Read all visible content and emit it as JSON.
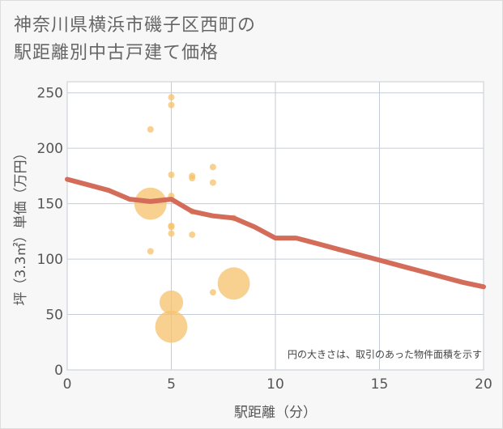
{
  "title_line1": "神奈川県横浜市磯子区西町の",
  "title_line2": "駅距離別中古戸建て価格",
  "chart_data": {
    "type": "scatter",
    "xlabel": "駅距離（分）",
    "ylabel": "坪（3.3㎡）単価（万円）",
    "xlim": [
      0,
      20
    ],
    "ylim": [
      0,
      260
    ],
    "x_ticks": [
      0,
      5,
      10,
      15,
      20
    ],
    "y_ticks": [
      0,
      50,
      100,
      150,
      200,
      250
    ],
    "x_tick_labels": [
      "0",
      "5",
      "10",
      "15",
      "20"
    ],
    "y_tick_labels": [
      "0",
      "50",
      "100",
      "150",
      "200",
      "250"
    ],
    "grid": true,
    "note": "円の大きさは、取引のあった物件面積を示す",
    "scatter_color": "#f5c26b",
    "line_color": "#d46c5a",
    "points": [
      {
        "x": 4,
        "y": 217,
        "size": 1
      },
      {
        "x": 4,
        "y": 150,
        "size": 4
      },
      {
        "x": 4,
        "y": 107,
        "size": 1
      },
      {
        "x": 5,
        "y": 246,
        "size": 1
      },
      {
        "x": 5,
        "y": 239,
        "size": 1
      },
      {
        "x": 5,
        "y": 176,
        "size": 1
      },
      {
        "x": 5,
        "y": 157,
        "size": 1
      },
      {
        "x": 5,
        "y": 130,
        "size": 1
      },
      {
        "x": 5,
        "y": 129,
        "size": 1
      },
      {
        "x": 5,
        "y": 123,
        "size": 1
      },
      {
        "x": 5,
        "y": 61,
        "size": 3
      },
      {
        "x": 5,
        "y": 39,
        "size": 4
      },
      {
        "x": 6,
        "y": 175,
        "size": 1
      },
      {
        "x": 6,
        "y": 173,
        "size": 1
      },
      {
        "x": 6,
        "y": 143,
        "size": 1
      },
      {
        "x": 6,
        "y": 122,
        "size": 1
      },
      {
        "x": 7,
        "y": 183,
        "size": 1
      },
      {
        "x": 7,
        "y": 169,
        "size": 1
      },
      {
        "x": 7,
        "y": 70,
        "size": 1
      },
      {
        "x": 8,
        "y": 137,
        "size": 1
      },
      {
        "x": 8,
        "y": 78,
        "size": 4
      }
    ],
    "trend": {
      "x": [
        0,
        1,
        2,
        3,
        4,
        5,
        6,
        7,
        8,
        9,
        10,
        11,
        12,
        13,
        14,
        15,
        16,
        17,
        18,
        19,
        20
      ],
      "y": [
        172,
        167,
        162,
        154,
        152,
        154,
        143,
        139,
        137,
        129,
        119,
        119,
        114,
        109,
        104,
        99,
        94,
        89,
        84,
        79,
        75
      ]
    }
  }
}
